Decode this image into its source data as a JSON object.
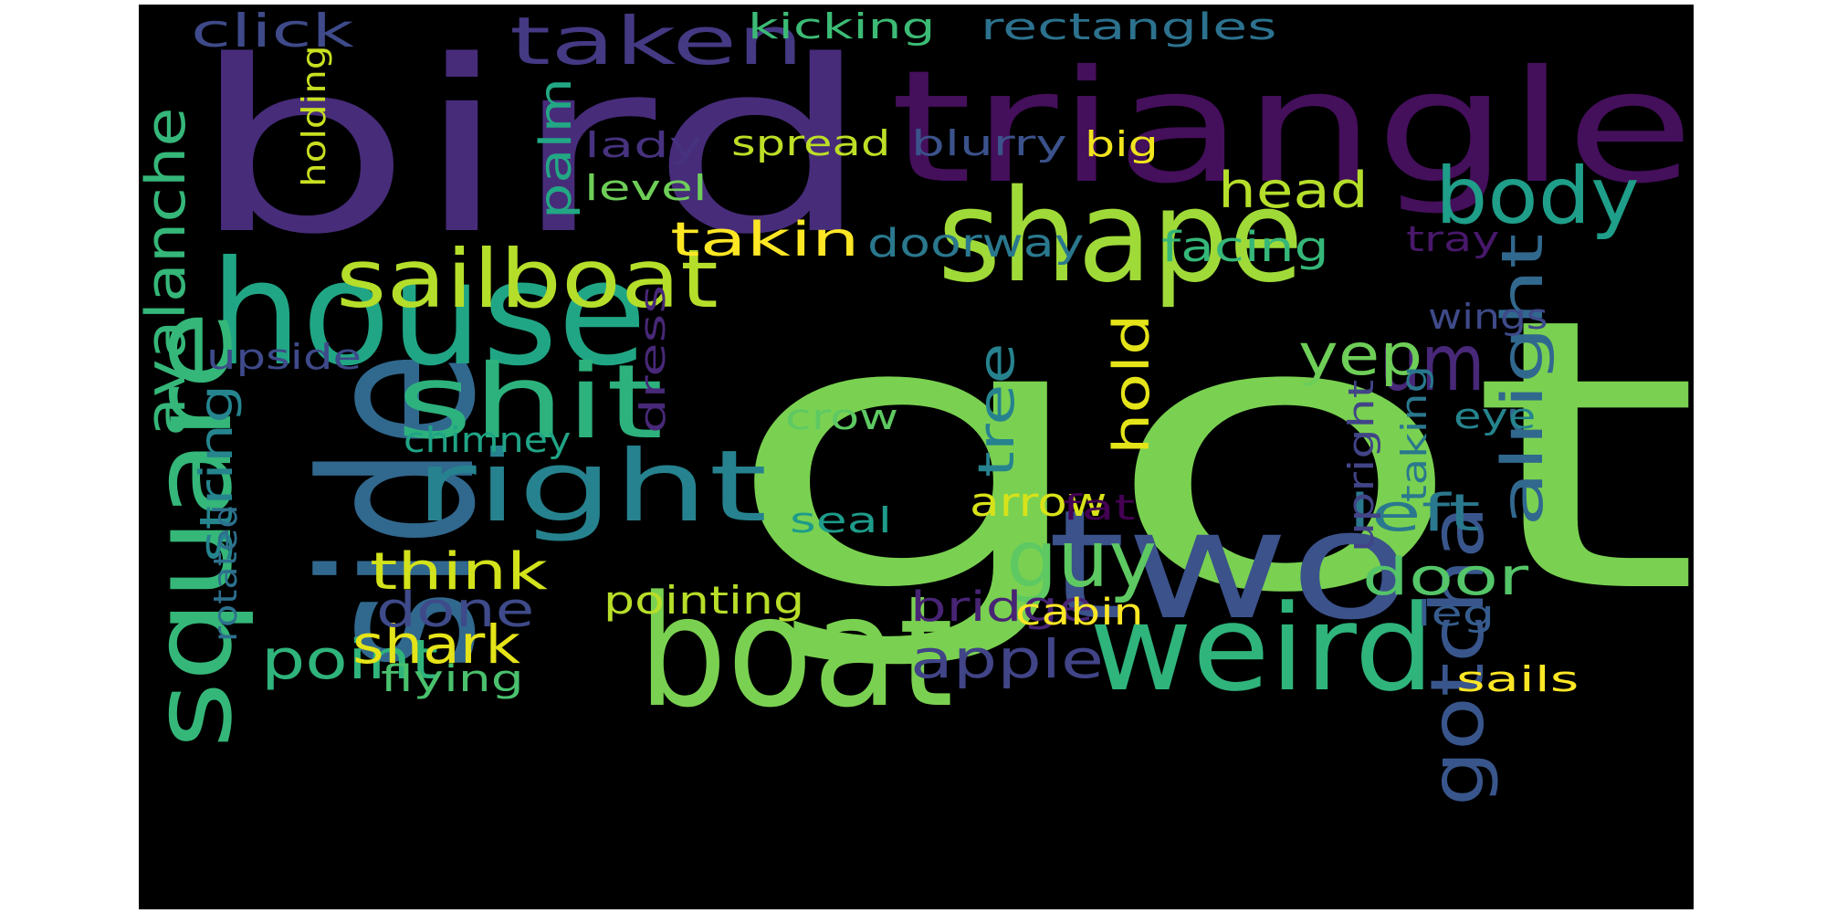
{
  "word_cloud": {
    "background_color": "#000000",
    "words": [
      {
        "text": "got",
        "color": "#7ad151",
        "rotate": false
      },
      {
        "text": "bird",
        "color": "#472c7a",
        "rotate": false
      },
      {
        "text": "triangle",
        "color": "#440f5b",
        "rotate": false
      },
      {
        "text": "side",
        "color": "#31688e",
        "rotate": true
      },
      {
        "text": "house",
        "color": "#21a685",
        "rotate": false
      },
      {
        "text": "boat",
        "color": "#7ad151",
        "rotate": false
      },
      {
        "text": "two",
        "color": "#3b528b",
        "rotate": false
      },
      {
        "text": "shape",
        "color": "#a0da39",
        "rotate": false
      },
      {
        "text": "square",
        "color": "#35b779",
        "rotate": true
      },
      {
        "text": "weird",
        "color": "#2fb47c",
        "rotate": false
      },
      {
        "text": "shit",
        "color": "#2db27d",
        "rotate": false
      },
      {
        "text": "right",
        "color": "#26828e",
        "rotate": false
      },
      {
        "text": "sailboat",
        "color": "#b5de2b",
        "rotate": false
      },
      {
        "text": "body",
        "color": "#1f9e89",
        "rotate": false
      },
      {
        "text": "gotcha",
        "color": "#39568c",
        "rotate": true
      },
      {
        "text": "guy",
        "color": "#5ec962",
        "rotate": false
      },
      {
        "text": "um",
        "color": "#482878",
        "rotate": false
      },
      {
        "text": "alright",
        "color": "#31688e",
        "rotate": true
      },
      {
        "text": "taken",
        "color": "#443983",
        "rotate": false
      },
      {
        "text": "avalanche",
        "color": "#35b779",
        "rotate": true
      },
      {
        "text": "apple",
        "color": "#414487",
        "rotate": false
      },
      {
        "text": "point",
        "color": "#2fb47c",
        "rotate": false
      },
      {
        "text": "yep",
        "color": "#6ece58",
        "rotate": false
      },
      {
        "text": "tree",
        "color": "#26828e",
        "rotate": true
      },
      {
        "text": "hold",
        "color": "#e5e419",
        "rotate": true
      },
      {
        "text": "shark",
        "color": "#e5e419",
        "rotate": false
      },
      {
        "text": "think",
        "color": "#d2e21b",
        "rotate": false
      },
      {
        "text": "door",
        "color": "#54c568",
        "rotate": false
      },
      {
        "text": "left",
        "color": "#2a788e",
        "rotate": false
      },
      {
        "text": "done",
        "color": "#3e4a89",
        "rotate": false
      },
      {
        "text": "takin",
        "color": "#fde725",
        "rotate": false
      },
      {
        "text": "head",
        "color": "#b5de2b",
        "rotate": false
      },
      {
        "text": "string",
        "color": "#25848e",
        "rotate": true
      },
      {
        "text": "palm",
        "color": "#22a884",
        "rotate": true
      },
      {
        "text": "click",
        "color": "#3e4a89",
        "rotate": false
      },
      {
        "text": "bridge",
        "color": "#482475",
        "rotate": false
      },
      {
        "text": "arrow",
        "color": "#d8e219",
        "rotate": false
      },
      {
        "text": "facing",
        "color": "#35b779",
        "rotate": false
      },
      {
        "text": "doorway",
        "color": "#2a788e",
        "rotate": false
      },
      {
        "text": "pointing",
        "color": "#b8de29",
        "rotate": false
      },
      {
        "text": "cabin",
        "color": "#fde725",
        "rotate": false
      },
      {
        "text": "flying",
        "color": "#4ac16d",
        "rotate": false
      },
      {
        "text": "rectangles",
        "color": "#2c728e",
        "rotate": false
      },
      {
        "text": "kicking",
        "color": "#3cbb75",
        "rotate": false
      },
      {
        "text": "spread",
        "color": "#bddf26",
        "rotate": false
      },
      {
        "text": "blurry",
        "color": "#3b528b",
        "rotate": false
      },
      {
        "text": "big",
        "color": "#f1e51d",
        "rotate": false
      },
      {
        "text": "lady",
        "color": "#46327e",
        "rotate": false
      },
      {
        "text": "level",
        "color": "#6ece58",
        "rotate": false
      },
      {
        "text": "chimney",
        "color": "#20a486",
        "rotate": false
      },
      {
        "text": "upside",
        "color": "#3e4a89",
        "rotate": false
      },
      {
        "text": "crow",
        "color": "#5ec962",
        "rotate": false
      },
      {
        "text": "seal",
        "color": "#1e9b8a",
        "rotate": false
      },
      {
        "text": "fat",
        "color": "#440154",
        "rotate": false
      },
      {
        "text": "sails",
        "color": "#fde725",
        "rotate": false
      },
      {
        "text": "leg",
        "color": "#365c8d",
        "rotate": false
      },
      {
        "text": "eye",
        "color": "#25848e",
        "rotate": false
      },
      {
        "text": "wings",
        "color": "#3e4a89",
        "rotate": false
      },
      {
        "text": "tray",
        "color": "#48186a",
        "rotate": false
      },
      {
        "text": "dress",
        "color": "#482878",
        "rotate": true
      },
      {
        "text": "upright",
        "color": "#414487",
        "rotate": true
      },
      {
        "text": "taking",
        "color": "#2a788e",
        "rotate": true
      },
      {
        "text": "holding",
        "color": "#c8e020",
        "rotate": true
      },
      {
        "text": "rotated",
        "color": "#2d708e",
        "rotate": true
      }
    ]
  }
}
